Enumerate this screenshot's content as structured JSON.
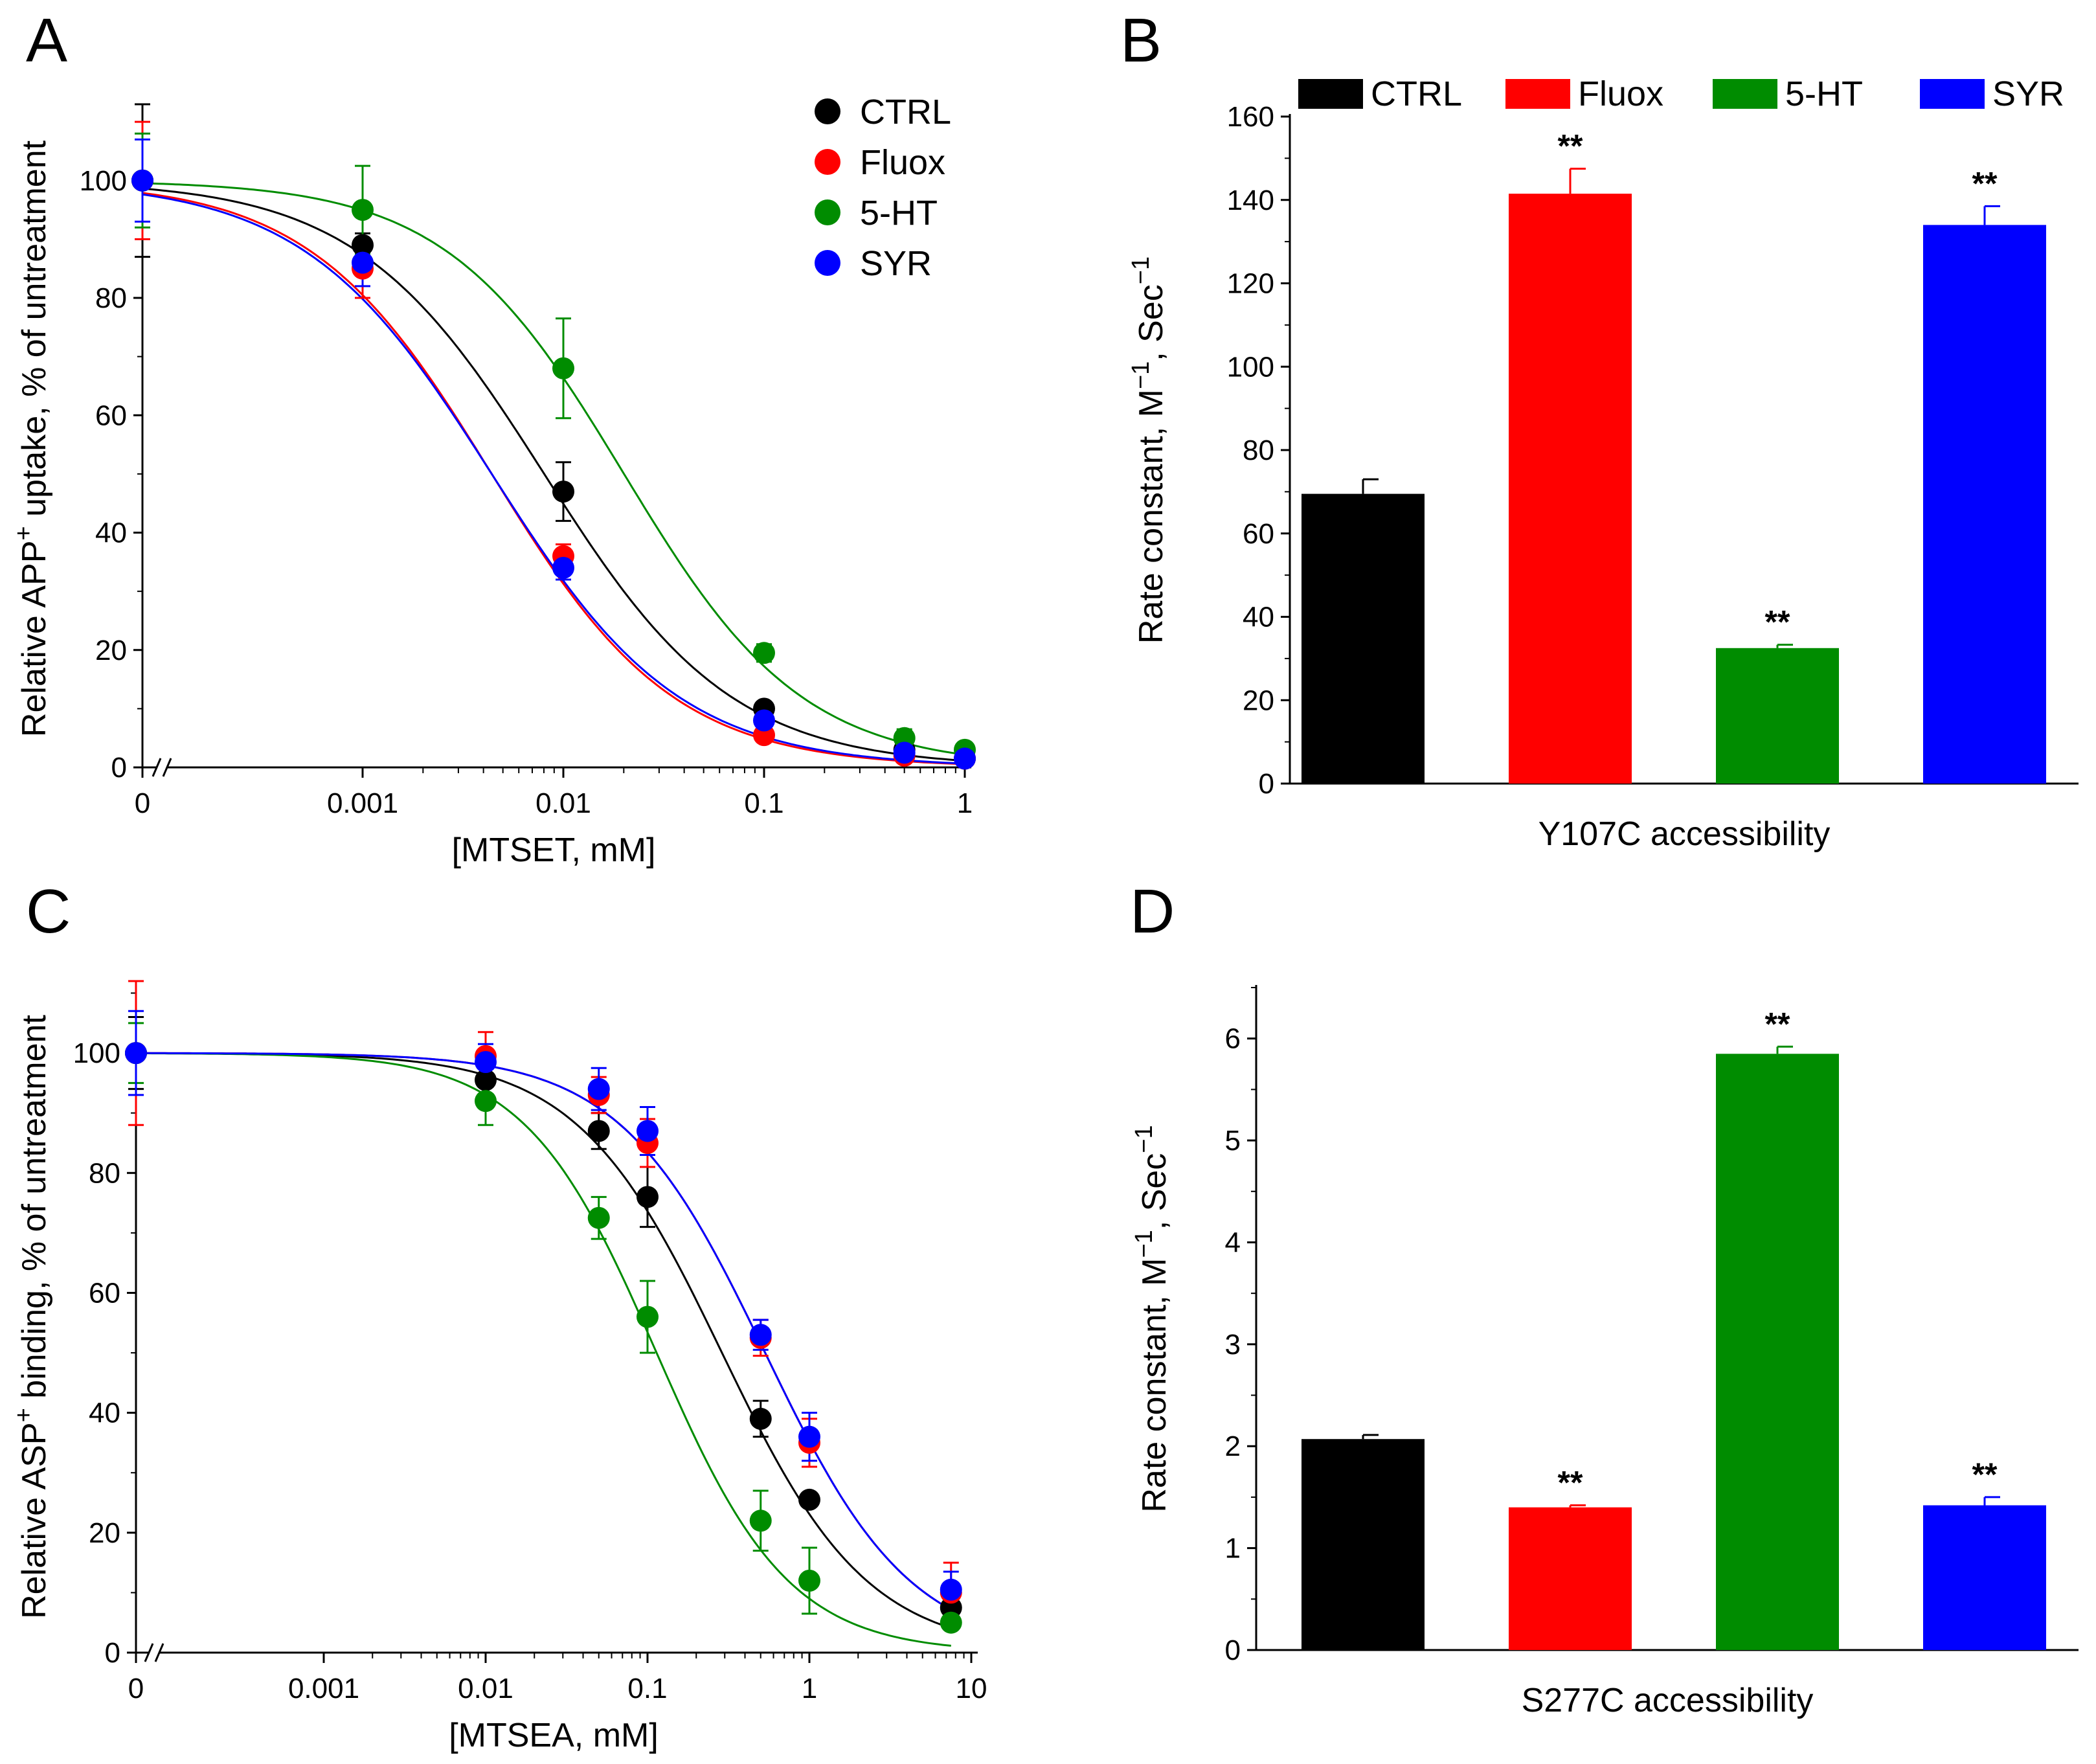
{
  "chart_data": [
    {
      "panel": "A",
      "type": "scatter",
      "xlabel": "[MTSET, mM]",
      "ylabel_parts": [
        "Relative APP",
        "+",
        " uptake, % of untreatment"
      ],
      "x_scale": "log with axis break at 0",
      "x_ticks": [
        "0",
        "0.001",
        "0.01",
        "0.1",
        "1"
      ],
      "y_ticks": [
        "0",
        "20",
        "40",
        "60",
        "80",
        "100"
      ],
      "ylim": [
        0,
        112
      ],
      "legend_position": "top-right",
      "fit_curves": true,
      "series": [
        {
          "name": "CTRL",
          "color": "#000000",
          "x": [
            0,
            0.001,
            0.01,
            0.1,
            0.5,
            1
          ],
          "y": [
            100,
            89,
            47,
            10,
            3,
            1.5
          ],
          "err": [
            13,
            2,
            5,
            1,
            1,
            0.5
          ],
          "ic50": 0.009,
          "hill": 0.95
        },
        {
          "name": "Fluox",
          "color": "#ff0000",
          "x": [
            0,
            0.001,
            0.01,
            0.1,
            0.5,
            1
          ],
          "y": [
            100,
            85,
            36,
            5.5,
            2,
            1.5
          ],
          "err": [
            10,
            5,
            2,
            1,
            0.5,
            0.5
          ],
          "ic50": 0.005,
          "hill": 0.98
        },
        {
          "name": "5-HT",
          "color": "#008c00",
          "x": [
            0,
            0.001,
            0.01,
            0.1,
            0.5,
            1
          ],
          "y": [
            100,
            95,
            68,
            19.5,
            5,
            3
          ],
          "err": [
            8,
            7.5,
            8.5,
            1.5,
            1.5,
            0.5
          ],
          "ic50": 0.022,
          "hill": 1.0
        },
        {
          "name": "SYR",
          "color": "#0000ff",
          "x": [
            0,
            0.001,
            0.01,
            0.1,
            0.5,
            1
          ],
          "y": [
            100,
            86,
            34,
            8,
            2.5,
            1.5
          ],
          "err": [
            7,
            4,
            2,
            1,
            0.5,
            0.5
          ],
          "ic50": 0.005,
          "hill": 0.95
        }
      ]
    },
    {
      "panel": "B",
      "type": "bar",
      "xlabel": "Y107C accessibility",
      "ylabel_parts": [
        "Rate constant, M",
        "−1",
        ", Sec",
        "−1"
      ],
      "categories": [
        "CTRL",
        "Fluox",
        "5-HT",
        "SYR"
      ],
      "values": [
        69.5,
        141.5,
        32.5,
        134
      ],
      "errors": [
        3.5,
        6,
        0.8,
        4.5
      ],
      "colors": [
        "#000000",
        "#ff0000",
        "#008c00",
        "#0000ff"
      ],
      "significance": [
        "",
        "**",
        "**",
        "**"
      ],
      "ylim": [
        0,
        160
      ],
      "y_ticks": [
        "0",
        "20",
        "40",
        "60",
        "80",
        "100",
        "120",
        "140",
        "160"
      ],
      "legend_position": "top"
    },
    {
      "panel": "C",
      "type": "scatter",
      "xlabel": "[MTSEA, mM]",
      "ylabel_parts": [
        "Relative ASP",
        "+",
        " binding, % of untreatment"
      ],
      "x_scale": "log with axis break at 0",
      "x_ticks": [
        "0",
        "0.001",
        "0.01",
        "0.1",
        "1",
        "10"
      ],
      "y_ticks": [
        "0",
        "20",
        "40",
        "60",
        "80",
        "100"
      ],
      "ylim": [
        0,
        112
      ],
      "fit_curves": true,
      "series": [
        {
          "name": "CTRL",
          "color": "#000000",
          "x": [
            0,
            0.01,
            0.05,
            0.1,
            0.5,
            1,
            7.5
          ],
          "y": [
            100,
            95.5,
            87,
            76,
            39,
            25.5,
            7.5
          ],
          "err": [
            6,
            4,
            3,
            5,
            3,
            1,
            2
          ],
          "ic50": 0.32,
          "hill": 1.0
        },
        {
          "name": "Fluox",
          "color": "#ff0000",
          "x": [
            0,
            0.01,
            0.05,
            0.1,
            0.5,
            1,
            7.5
          ],
          "y": [
            100,
            99.5,
            93,
            85,
            52.5,
            35,
            10
          ],
          "err": [
            12,
            4,
            3,
            4,
            3,
            4,
            5
          ],
          "ic50": 0.58,
          "hill": 1.0
        },
        {
          "name": "5-HT",
          "color": "#008c00",
          "x": [
            0,
            0.01,
            0.05,
            0.1,
            0.5,
            1,
            7.5
          ],
          "y": [
            100,
            92,
            72.5,
            56,
            22,
            12,
            5
          ],
          "err": [
            5,
            4,
            3.5,
            6,
            5,
            5.5,
            1
          ],
          "ic50": 0.13,
          "hill": 1.1
        },
        {
          "name": "SYR",
          "color": "#0000ff",
          "x": [
            0,
            0.01,
            0.05,
            0.1,
            0.5,
            1,
            7.5
          ],
          "y": [
            100,
            98.5,
            94,
            87,
            53,
            36,
            10.5
          ],
          "err": [
            7,
            3,
            3.5,
            4,
            2.5,
            4,
            3
          ],
          "ic50": 0.58,
          "hill": 1.0
        }
      ]
    },
    {
      "panel": "D",
      "type": "bar",
      "xlabel": "S277C accessibility",
      "ylabel_parts": [
        "Rate constant, M",
        "−1",
        ", Sec",
        "−1"
      ],
      "categories": [
        "CTRL",
        "Fluox",
        "5-HT",
        "SYR"
      ],
      "values": [
        2.07,
        1.4,
        5.85,
        1.42
      ],
      "errors": [
        0.04,
        0.02,
        0.07,
        0.08
      ],
      "colors": [
        "#000000",
        "#ff0000",
        "#008c00",
        "#0000ff"
      ],
      "significance": [
        "",
        "**",
        "**",
        "**"
      ],
      "ylim": [
        0,
        6.5
      ],
      "y_ticks": [
        "0",
        "1",
        "2",
        "3",
        "4",
        "5",
        "6"
      ]
    }
  ]
}
